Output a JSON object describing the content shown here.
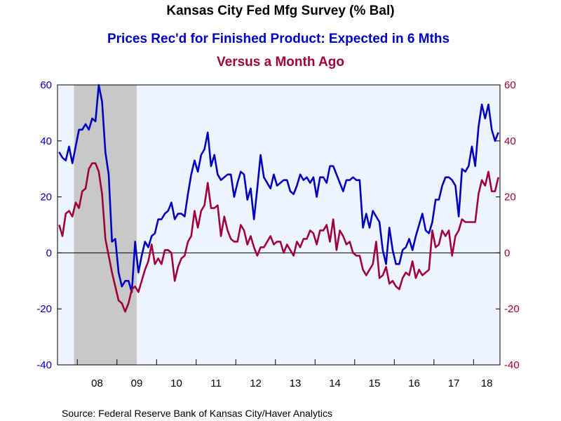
{
  "chart_data": {
    "type": "line",
    "title": "Kansas City Fed Mfg Survey (% Bal)",
    "subtitle_1": "Prices Rec'd for Finished Product: Expected in 6 Mths",
    "subtitle_2": "Versus a Month Ago",
    "source": "Source:  Federal Reserve Bank of Kansas City/Haver Analytics",
    "x_start": "2007-07",
    "x_end": "2018-08",
    "x_tick_labels": [
      "08",
      "09",
      "10",
      "11",
      "12",
      "13",
      "14",
      "15",
      "16",
      "17",
      "18"
    ],
    "y_left": {
      "range": [
        -40,
        60
      ],
      "ticks": [
        "60",
        "40",
        "20",
        "0",
        "-20",
        "-40"
      ]
    },
    "y_right": {
      "range": [
        -40,
        60
      ],
      "ticks": [
        "60",
        "40",
        "20",
        "0",
        "-20",
        "-40"
      ]
    },
    "recession_shading": {
      "start": "2007-12",
      "end": "2009-06"
    },
    "colors": {
      "series_blue": "#0000c0",
      "series_red": "#a0003c",
      "plot_bg": "#eef4ff",
      "recession": "#c8c8c8"
    },
    "series": [
      {
        "x": [
          "2007-07",
          "2007-08",
          "2007-09",
          "2007-10",
          "2007-11",
          "2007-12",
          "2008-01",
          "2008-02",
          "2008-03",
          "2008-04",
          "2008-05",
          "2008-06",
          "2008-07",
          "2008-08",
          "2008-09",
          "2008-10",
          "2008-11",
          "2008-12",
          "2009-01",
          "2009-02",
          "2009-03",
          "2009-04",
          "2009-05",
          "2009-06",
          "2009-07",
          "2009-08",
          "2009-09",
          "2009-10",
          "2009-11",
          "2009-12",
          "2010-01",
          "2010-02",
          "2010-03",
          "2010-04",
          "2010-05",
          "2010-06",
          "2010-07",
          "2010-08",
          "2010-09",
          "2010-10",
          "2010-11",
          "2010-12",
          "2011-01",
          "2011-02",
          "2011-03",
          "2011-04",
          "2011-05",
          "2011-06",
          "2011-07",
          "2011-08",
          "2011-09",
          "2011-10",
          "2011-11",
          "2011-12",
          "2012-01",
          "2012-02",
          "2012-03",
          "2012-04",
          "2012-05",
          "2012-06",
          "2012-07",
          "2012-08",
          "2012-09",
          "2012-10",
          "2012-11",
          "2012-12",
          "2013-01",
          "2013-02",
          "2013-03",
          "2013-04",
          "2013-05",
          "2013-06",
          "2013-07",
          "2013-08",
          "2013-09",
          "2013-10",
          "2013-11",
          "2013-12",
          "2014-01",
          "2014-02",
          "2014-03",
          "2014-04",
          "2014-05",
          "2014-06",
          "2014-07",
          "2014-08",
          "2014-09",
          "2014-10",
          "2014-11",
          "2014-12",
          "2015-01",
          "2015-02",
          "2015-03",
          "2015-04",
          "2015-05",
          "2015-06",
          "2015-07",
          "2015-08",
          "2015-09",
          "2015-10",
          "2015-11",
          "2015-12",
          "2016-01",
          "2016-02",
          "2016-03",
          "2016-04",
          "2016-05",
          "2016-06",
          "2016-07",
          "2016-08",
          "2016-09",
          "2016-10",
          "2016-11",
          "2016-12",
          "2017-01",
          "2017-02",
          "2017-03",
          "2017-04",
          "2017-05",
          "2017-06",
          "2017-07",
          "2017-08",
          "2017-09",
          "2017-10",
          "2017-11",
          "2017-12",
          "2018-01",
          "2018-02",
          "2018-03",
          "2018-04",
          "2018-05",
          "2018-06",
          "2018-07",
          "2018-08"
        ],
        "values": [
          36,
          34,
          33,
          38,
          32,
          38,
          44,
          44,
          46,
          44,
          48,
          47,
          60,
          54,
          36,
          28,
          4,
          5,
          -7,
          -12,
          -10,
          -10,
          -14,
          4,
          -7,
          -1,
          4,
          2,
          6,
          7,
          12,
          12,
          14,
          15,
          18,
          12,
          14,
          14,
          13,
          21,
          28,
          33,
          29,
          35,
          37,
          43,
          31,
          35,
          28,
          26,
          27,
          28,
          28,
          20,
          25,
          29,
          28,
          19,
          23,
          12,
          23,
          35,
          27,
          25,
          23,
          28,
          24,
          25,
          26,
          26,
          22,
          21,
          24,
          28,
          26,
          27,
          25,
          27,
          20,
          27,
          27,
          25,
          31,
          31,
          28,
          25,
          22,
          26,
          26,
          27,
          26,
          26,
          9,
          14,
          9,
          15,
          13,
          11,
          1,
          -4,
          9,
          1,
          -4,
          -4,
          1,
          2,
          5,
          1,
          6,
          10,
          14,
          8,
          7,
          11,
          19,
          19,
          24,
          27,
          27,
          26,
          24,
          13,
          30,
          29,
          31,
          38,
          31,
          45,
          53,
          48,
          53,
          44,
          40,
          43
        ]
      },
      {
        "x": [
          "2007-07",
          "2007-08",
          "2007-09",
          "2007-10",
          "2007-11",
          "2007-12",
          "2008-01",
          "2008-02",
          "2008-03",
          "2008-04",
          "2008-05",
          "2008-06",
          "2008-07",
          "2008-08",
          "2008-09",
          "2008-10",
          "2008-11",
          "2008-12",
          "2009-01",
          "2009-02",
          "2009-03",
          "2009-04",
          "2009-05",
          "2009-06",
          "2009-07",
          "2009-08",
          "2009-09",
          "2009-10",
          "2009-11",
          "2009-12",
          "2010-01",
          "2010-02",
          "2010-03",
          "2010-04",
          "2010-05",
          "2010-06",
          "2010-07",
          "2010-08",
          "2010-09",
          "2010-10",
          "2010-11",
          "2010-12",
          "2011-01",
          "2011-02",
          "2011-03",
          "2011-04",
          "2011-05",
          "2011-06",
          "2011-07",
          "2011-08",
          "2011-09",
          "2011-10",
          "2011-11",
          "2011-12",
          "2012-01",
          "2012-02",
          "2012-03",
          "2012-04",
          "2012-05",
          "2012-06",
          "2012-07",
          "2012-08",
          "2012-09",
          "2012-10",
          "2012-11",
          "2012-12",
          "2013-01",
          "2013-02",
          "2013-03",
          "2013-04",
          "2013-05",
          "2013-06",
          "2013-07",
          "2013-08",
          "2013-09",
          "2013-10",
          "2013-11",
          "2013-12",
          "2014-01",
          "2014-02",
          "2014-03",
          "2014-04",
          "2014-05",
          "2014-06",
          "2014-07",
          "2014-08",
          "2014-09",
          "2014-10",
          "2014-11",
          "2014-12",
          "2015-01",
          "2015-02",
          "2015-03",
          "2015-04",
          "2015-05",
          "2015-06",
          "2015-07",
          "2015-08",
          "2015-09",
          "2015-10",
          "2015-11",
          "2015-12",
          "2016-01",
          "2016-02",
          "2016-03",
          "2016-04",
          "2016-05",
          "2016-06",
          "2016-07",
          "2016-08",
          "2016-09",
          "2016-10",
          "2016-11",
          "2016-12",
          "2017-01",
          "2017-02",
          "2017-03",
          "2017-04",
          "2017-05",
          "2017-06",
          "2017-07",
          "2017-08",
          "2017-09",
          "2017-10",
          "2017-11",
          "2017-12",
          "2018-01",
          "2018-02",
          "2018-03",
          "2018-04",
          "2018-05",
          "2018-06",
          "2018-07",
          "2018-08"
        ],
        "values": [
          10,
          6,
          14,
          15,
          13,
          18,
          16,
          22,
          23,
          30,
          32,
          32,
          29,
          21,
          5,
          -1,
          -7,
          -12,
          -17,
          -18,
          -21,
          -18,
          -13,
          -12,
          -14,
          -10,
          -6,
          -3,
          3,
          -4,
          -2,
          -4,
          1,
          1,
          0,
          -10,
          -5,
          -2,
          -1,
          4,
          6,
          15,
          9,
          15,
          17,
          25,
          16,
          16,
          17,
          6,
          13,
          8,
          5,
          4,
          4,
          10,
          8,
          3,
          6,
          2,
          -1,
          2,
          2,
          4,
          6,
          3,
          4,
          4,
          0,
          3,
          1,
          -1,
          4,
          2,
          5,
          5,
          8,
          7,
          3,
          8,
          8,
          10,
          4,
          12,
          1,
          8,
          6,
          3,
          4,
          0,
          -1,
          -1,
          -6,
          -8,
          -6,
          -4,
          4,
          -9,
          -8,
          -5,
          -11,
          -10,
          -12,
          -13,
          -9,
          -7,
          -8,
          -3,
          -9,
          -6,
          -8,
          -7,
          -6,
          8,
          2,
          3,
          8,
          6,
          8,
          -1,
          6,
          8,
          12,
          11,
          11,
          11,
          11,
          21,
          26,
          24,
          29,
          22,
          22,
          27
        ]
      }
    ]
  }
}
